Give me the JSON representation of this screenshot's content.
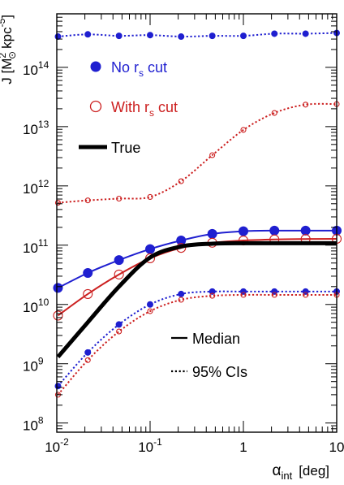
{
  "chart_data": {
    "type": "line",
    "x_scale": "log",
    "y_scale": "log",
    "xlim": [
      0.01,
      10
    ],
    "ylim": [
      70000000.0,
      800000000000000.0
    ],
    "x_ticks": [
      {
        "value": 0.01,
        "base": "10",
        "exp": "-2"
      },
      {
        "value": 0.1,
        "base": "10",
        "exp": "-1"
      },
      {
        "value": 1,
        "base": "1",
        "exp": ""
      },
      {
        "value": 10,
        "base": "10",
        "exp": ""
      }
    ],
    "y_ticks": [
      {
        "value": 100000000.0,
        "base": "10",
        "exp": "8"
      },
      {
        "value": 1000000000.0,
        "base": "10",
        "exp": "9"
      },
      {
        "value": 10000000000.0,
        "base": "10",
        "exp": "10"
      },
      {
        "value": 100000000000.0,
        "base": "10",
        "exp": "11"
      },
      {
        "value": 1000000000000.0,
        "base": "10",
        "exp": "12"
      },
      {
        "value": 10000000000000.0,
        "base": "10",
        "exp": "13"
      },
      {
        "value": 100000000000000.0,
        "base": "10",
        "exp": "14"
      }
    ],
    "xlabel": {
      "main": "α",
      "sub": "int",
      "unit": "[deg]"
    },
    "ylabel": {
      "main": "J [M",
      "sup": "2",
      "sub": "⊙",
      "unit": "kpc",
      "unit_sup": "-5",
      "close": "]"
    },
    "colors": {
      "no_cut": "#1f1fd0",
      "with_cut": "#cc2020",
      "true": "#000000"
    },
    "series": [
      {
        "name": "No rs cut",
        "color": "#1f1fd0",
        "marker": "filled",
        "style": "solid",
        "stat": "median",
        "x": [
          0.0103,
          0.0215,
          0.0464,
          0.1,
          0.215,
          0.464,
          1.0,
          2.15,
          4.64,
          10.0
        ],
        "y": [
          19000000000.0,
          34000000000.0,
          56000000000.0,
          86000000000.0,
          120000000000.0,
          155000000000.0,
          172000000000.0,
          176000000000.0,
          176000000000.0,
          176000000000.0
        ]
      },
      {
        "name": "No rs cut",
        "color": "#1f1fd0",
        "marker": "filled",
        "style": "dotted",
        "stat": "upper",
        "x": [
          0.0103,
          0.0215,
          0.0464,
          0.1,
          0.215,
          0.464,
          1.0,
          2.15,
          4.64,
          10.0
        ],
        "y": [
          330000000000000.0,
          360000000000000.0,
          340000000000000.0,
          350000000000000.0,
          330000000000000.0,
          340000000000000.0,
          340000000000000.0,
          370000000000000.0,
          370000000000000.0,
          380000000000000.0
        ]
      },
      {
        "name": "No rs cut",
        "color": "#1f1fd0",
        "marker": "filled",
        "style": "dotted",
        "stat": "lower",
        "x": [
          0.0103,
          0.0215,
          0.0464,
          0.1,
          0.215,
          0.464,
          1.0,
          2.15,
          4.64,
          10.0
        ],
        "y": [
          420000000.0,
          1550000000.0,
          4600000000.0,
          10000000000.0,
          15000000000.0,
          16500000000.0,
          16500000000.0,
          16500000000.0,
          16500000000.0,
          16500000000.0
        ]
      },
      {
        "name": "With rs cut",
        "color": "#cc2020",
        "marker": "open",
        "style": "solid",
        "stat": "median",
        "x": [
          0.0103,
          0.0215,
          0.0464,
          0.1,
          0.215,
          0.464,
          1.0,
          2.15,
          4.64,
          10.0
        ],
        "y": [
          6500000000.0,
          15000000000.0,
          32000000000.0,
          60000000000.0,
          90000000000.0,
          110000000000.0,
          120000000000.0,
          125000000000.0,
          127000000000.0,
          128000000000.0
        ]
      },
      {
        "name": "With rs cut",
        "color": "#cc2020",
        "marker": "open",
        "style": "dotted",
        "stat": "upper",
        "x": [
          0.0103,
          0.0215,
          0.0464,
          0.1,
          0.215,
          0.464,
          1.0,
          2.15,
          4.64,
          10.0
        ],
        "y": [
          520000000000.0,
          570000000000.0,
          610000000000.0,
          650000000000.0,
          1200000000000.0,
          3300000000000.0,
          8800000000000.0,
          17000000000000.0,
          23500000000000.0,
          24000000000000.0
        ]
      },
      {
        "name": "With rs cut",
        "color": "#cc2020",
        "marker": "open",
        "style": "dotted",
        "stat": "lower",
        "x": [
          0.0103,
          0.0215,
          0.0464,
          0.1,
          0.215,
          0.464,
          1.0,
          2.15,
          4.64,
          10.0
        ],
        "y": [
          300000000.0,
          1150000000.0,
          3500000000.0,
          7700000000.0,
          12000000000.0,
          14000000000.0,
          14500000000.0,
          14500000000.0,
          14500000000.0,
          14500000000.0
        ]
      },
      {
        "name": "True",
        "color": "#000000",
        "marker": "none",
        "style": "thick",
        "x": [
          0.0103,
          0.0215,
          0.0464,
          0.1,
          0.215,
          0.464,
          1.0,
          2.15,
          4.64,
          10.0
        ],
        "y": [
          1300000000.0,
          5000000000.0,
          20000000000.0,
          62000000000.0,
          95000000000.0,
          106000000000.0,
          108000000000.0,
          108000000000.0,
          108000000000.0,
          108000000000.0
        ]
      }
    ],
    "legend": {
      "placement": "top-left",
      "items": [
        {
          "key": "no_cut",
          "label": "No r",
          "sub": "s",
          "rest": " cut",
          "color": "#1f1fd0",
          "marker": "filled"
        },
        {
          "key": "with_cut",
          "label": "With r",
          "sub": "s",
          "rest": " cut",
          "color": "#cc2020",
          "marker": "open"
        },
        {
          "key": "true",
          "label": "True",
          "sub": "",
          "rest": "",
          "color": "#000000",
          "marker": "thick-line"
        }
      ]
    },
    "legend2": {
      "placement": "bottom-right",
      "items": [
        {
          "key": "median",
          "label": "Median",
          "style": "solid"
        },
        {
          "key": "ci",
          "label": "95% CIs",
          "style": "dotted"
        }
      ]
    },
    "grid": false
  }
}
